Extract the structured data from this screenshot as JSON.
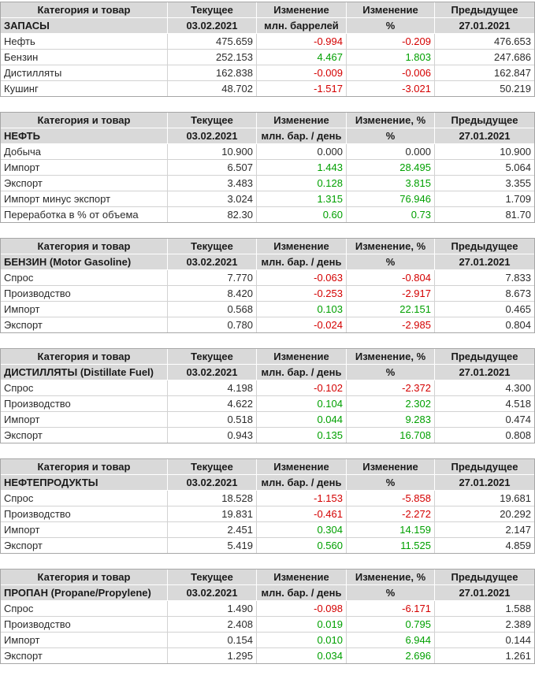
{
  "colors": {
    "positive": "#00a000",
    "negative": "#d40000",
    "header_background": "#d9d9d9",
    "table_border": "#a6a6a6",
    "cell_border": "#d2d2d2"
  },
  "tables": [
    {
      "headers": [
        "Категория и товар",
        "Текущее",
        "Изменение",
        "Изменение",
        "Предыдущее"
      ],
      "subheaders": [
        "ЗАПАСЫ",
        "03.02.2021",
        "млн. баррелей",
        "%",
        "27.01.2021"
      ],
      "rows": [
        {
          "label": "Нефть",
          "current": "475.659",
          "change": "-0.994",
          "change_pct": "-0.209",
          "previous": "476.653"
        },
        {
          "label": "Бензин",
          "current": "252.153",
          "change": "4.467",
          "change_pct": "1.803",
          "previous": "247.686"
        },
        {
          "label": "Дистилляты",
          "current": "162.838",
          "change": "-0.009",
          "change_pct": "-0.006",
          "previous": "162.847"
        },
        {
          "label": "Кушинг",
          "current": "48.702",
          "change": "-1.517",
          "change_pct": "-3.021",
          "previous": "50.219"
        }
      ]
    },
    {
      "headers": [
        "Категория и товар",
        "Текущее",
        "Изменение",
        "Изменение, %",
        "Предыдущее"
      ],
      "subheaders": [
        "НЕФТЬ",
        "03.02.2021",
        "млн. бар. / день",
        "%",
        "27.01.2021"
      ],
      "rows": [
        {
          "label": "Добыча",
          "current": "10.900",
          "change": "0.000",
          "change_pct": "0.000",
          "previous": "10.900"
        },
        {
          "label": "Импорт",
          "current": "6.507",
          "change": "1.443",
          "change_pct": "28.495",
          "previous": "5.064"
        },
        {
          "label": "Экспорт",
          "current": "3.483",
          "change": "0.128",
          "change_pct": "3.815",
          "previous": "3.355"
        },
        {
          "label": "Импорт минус экспорт",
          "current": "3.024",
          "change": "1.315",
          "change_pct": "76.946",
          "previous": "1.709"
        },
        {
          "label": "Переработка в % от объема",
          "current": "82.30",
          "change": "0.60",
          "change_pct": "0.73",
          "previous": "81.70"
        }
      ]
    },
    {
      "headers": [
        "Категория и товар",
        "Текущее",
        "Изменение",
        "Изменение, %",
        "Предыдущее"
      ],
      "subheaders": [
        "БЕНЗИН (Motor Gasoline)",
        "03.02.2021",
        "млн. бар. / день",
        "%",
        "27.01.2021"
      ],
      "rows": [
        {
          "label": "Спрос",
          "current": "7.770",
          "change": "-0.063",
          "change_pct": "-0.804",
          "previous": "7.833"
        },
        {
          "label": "Производство",
          "current": "8.420",
          "change": "-0.253",
          "change_pct": "-2.917",
          "previous": "8.673"
        },
        {
          "label": "Импорт",
          "current": "0.568",
          "change": "0.103",
          "change_pct": "22.151",
          "previous": "0.465"
        },
        {
          "label": "Экспорт",
          "current": "0.780",
          "change": "-0.024",
          "change_pct": "-2.985",
          "previous": "0.804"
        }
      ]
    },
    {
      "headers": [
        "Категория и товар",
        "Текущее",
        "Изменение",
        "Изменение, %",
        "Предыдущее"
      ],
      "subheaders": [
        "ДИСТИЛЛЯТЫ (Distillate Fuel)",
        "03.02.2021",
        "млн. бар. / день",
        "%",
        "27.01.2021"
      ],
      "rows": [
        {
          "label": "Спрос",
          "current": "4.198",
          "change": "-0.102",
          "change_pct": "-2.372",
          "previous": "4.300"
        },
        {
          "label": "Производство",
          "current": "4.622",
          "change": "0.104",
          "change_pct": "2.302",
          "previous": "4.518"
        },
        {
          "label": "Импорт",
          "current": "0.518",
          "change": "0.044",
          "change_pct": "9.283",
          "previous": "0.474"
        },
        {
          "label": "Экспорт",
          "current": "0.943",
          "change": "0.135",
          "change_pct": "16.708",
          "previous": "0.808"
        }
      ]
    },
    {
      "headers": [
        "Категория и товар",
        "Текущее",
        "Изменение",
        "Изменение",
        "Предыдущее"
      ],
      "subheaders": [
        "НЕФТЕПРОДУКТЫ",
        "03.02.2021",
        "млн. бар. / день",
        "%",
        "27.01.2021"
      ],
      "rows": [
        {
          "label": "Спрос",
          "current": "18.528",
          "change": "-1.153",
          "change_pct": "-5.858",
          "previous": "19.681"
        },
        {
          "label": "Производство",
          "current": "19.831",
          "change": "-0.461",
          "change_pct": "-2.272",
          "previous": "20.292"
        },
        {
          "label": "Импорт",
          "current": "2.451",
          "change": "0.304",
          "change_pct": "14.159",
          "previous": "2.147"
        },
        {
          "label": "Экспорт",
          "current": "5.419",
          "change": "0.560",
          "change_pct": "11.525",
          "previous": "4.859"
        }
      ]
    },
    {
      "headers": [
        "Категория и товар",
        "Текущее",
        "Изменение",
        "Изменение, %",
        "Предыдущее"
      ],
      "subheaders": [
        "ПРОПАН (Propane/Propylene)",
        "03.02.2021",
        "млн. бар. / день",
        "%",
        "27.01.2021"
      ],
      "rows": [
        {
          "label": "Спрос",
          "current": "1.490",
          "change": "-0.098",
          "change_pct": "-6.171",
          "previous": "1.588"
        },
        {
          "label": "Производство",
          "current": "2.408",
          "change": "0.019",
          "change_pct": "0.795",
          "previous": "2.389"
        },
        {
          "label": "Импорт",
          "current": "0.154",
          "change": "0.010",
          "change_pct": "6.944",
          "previous": "0.144"
        },
        {
          "label": "Экспорт",
          "current": "1.295",
          "change": "0.034",
          "change_pct": "2.696",
          "previous": "1.261"
        }
      ]
    }
  ]
}
